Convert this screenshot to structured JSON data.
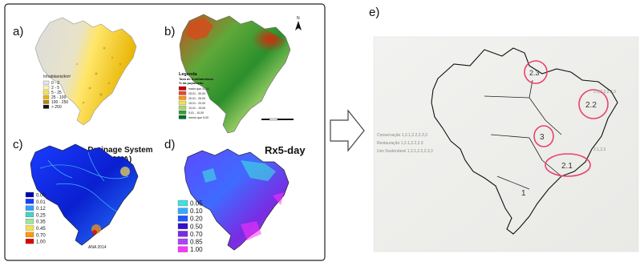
{
  "panels": {
    "a": {
      "label": "a)",
      "legend_title": "Inhabitants/km²",
      "legend": [
        {
          "label": "0 - 2",
          "color": "#e6e6e6"
        },
        {
          "label": "2 - 5",
          "color": "#fff5b0"
        },
        {
          "label": "5 - 25",
          "color": "#ffe14d"
        },
        {
          "label": "25 - 100",
          "color": "#e6b800"
        },
        {
          "label": "100 - 250",
          "color": "#b8860b"
        },
        {
          "label": "> 250",
          "color": "#111111"
        }
      ]
    },
    "b": {
      "label": "b)",
      "north_icon": "north-arrow-icon",
      "legend_title": "Legenda",
      "legend_subtitle": "Taxa de Analfabetismo",
      "legend_subtitle2": "% da população",
      "legend": [
        {
          "label": "maior que 30,01",
          "color": "#c00000"
        },
        {
          "label": "25,01 - 30,00",
          "color": "#e84a1e"
        },
        {
          "label": "20,01 - 25,00",
          "color": "#f7941d"
        },
        {
          "label": "15,01 - 20,00",
          "color": "#f4e04d"
        },
        {
          "label": "10,01 - 15,00",
          "color": "#a6d96a"
        },
        {
          "label": "5,01 - 10,00",
          "color": "#33a02c"
        },
        {
          "label": "menor que 5,00",
          "color": "#006d2c"
        }
      ]
    },
    "c": {
      "label": "c)",
      "title_line1": "Drainage System",
      "title_line2": "(ANA)",
      "source": "ANA 2014",
      "legend": [
        {
          "label": "0.00",
          "color": "#0000aa"
        },
        {
          "label": "0.01",
          "color": "#1a3cff"
        },
        {
          "label": "0.12",
          "color": "#2aa0ff"
        },
        {
          "label": "0.25",
          "color": "#46d2c8"
        },
        {
          "label": "0.35",
          "color": "#9be89b"
        },
        {
          "label": "0.45",
          "color": "#f4e04d"
        },
        {
          "label": "0.70",
          "color": "#ff9a00"
        },
        {
          "label": "1.00",
          "color": "#e00000"
        }
      ]
    },
    "d": {
      "label": "d)",
      "title": "Rx5-day",
      "legend": [
        {
          "label": "0.05",
          "color": "#40e0e0"
        },
        {
          "label": "0.10",
          "color": "#33aaff"
        },
        {
          "label": "0.20",
          "color": "#2255ff"
        },
        {
          "label": "0.50",
          "color": "#3311cc"
        },
        {
          "label": "0.70",
          "color": "#7a2be2"
        },
        {
          "label": "0.85",
          "color": "#b040ff"
        },
        {
          "label": "1.00",
          "color": "#ff33ff"
        }
      ]
    },
    "e": {
      "label": "e)",
      "circles": [
        {
          "label": "2.3"
        },
        {
          "label": "2.2"
        },
        {
          "label": "3"
        },
        {
          "label": "2.1"
        },
        {
          "label": "1"
        }
      ],
      "annotations": [
        "Conservação 1,2.1,2.2,2.3,3",
        "Restauração 1,2.1,2.2,2.3",
        "Uso Sustentável 1,2.1,2.2,2.3,3",
        "2.1,2.2,2.3,3",
        "2.1,2.3"
      ]
    }
  },
  "arrow_icon": "right-arrow-icon"
}
